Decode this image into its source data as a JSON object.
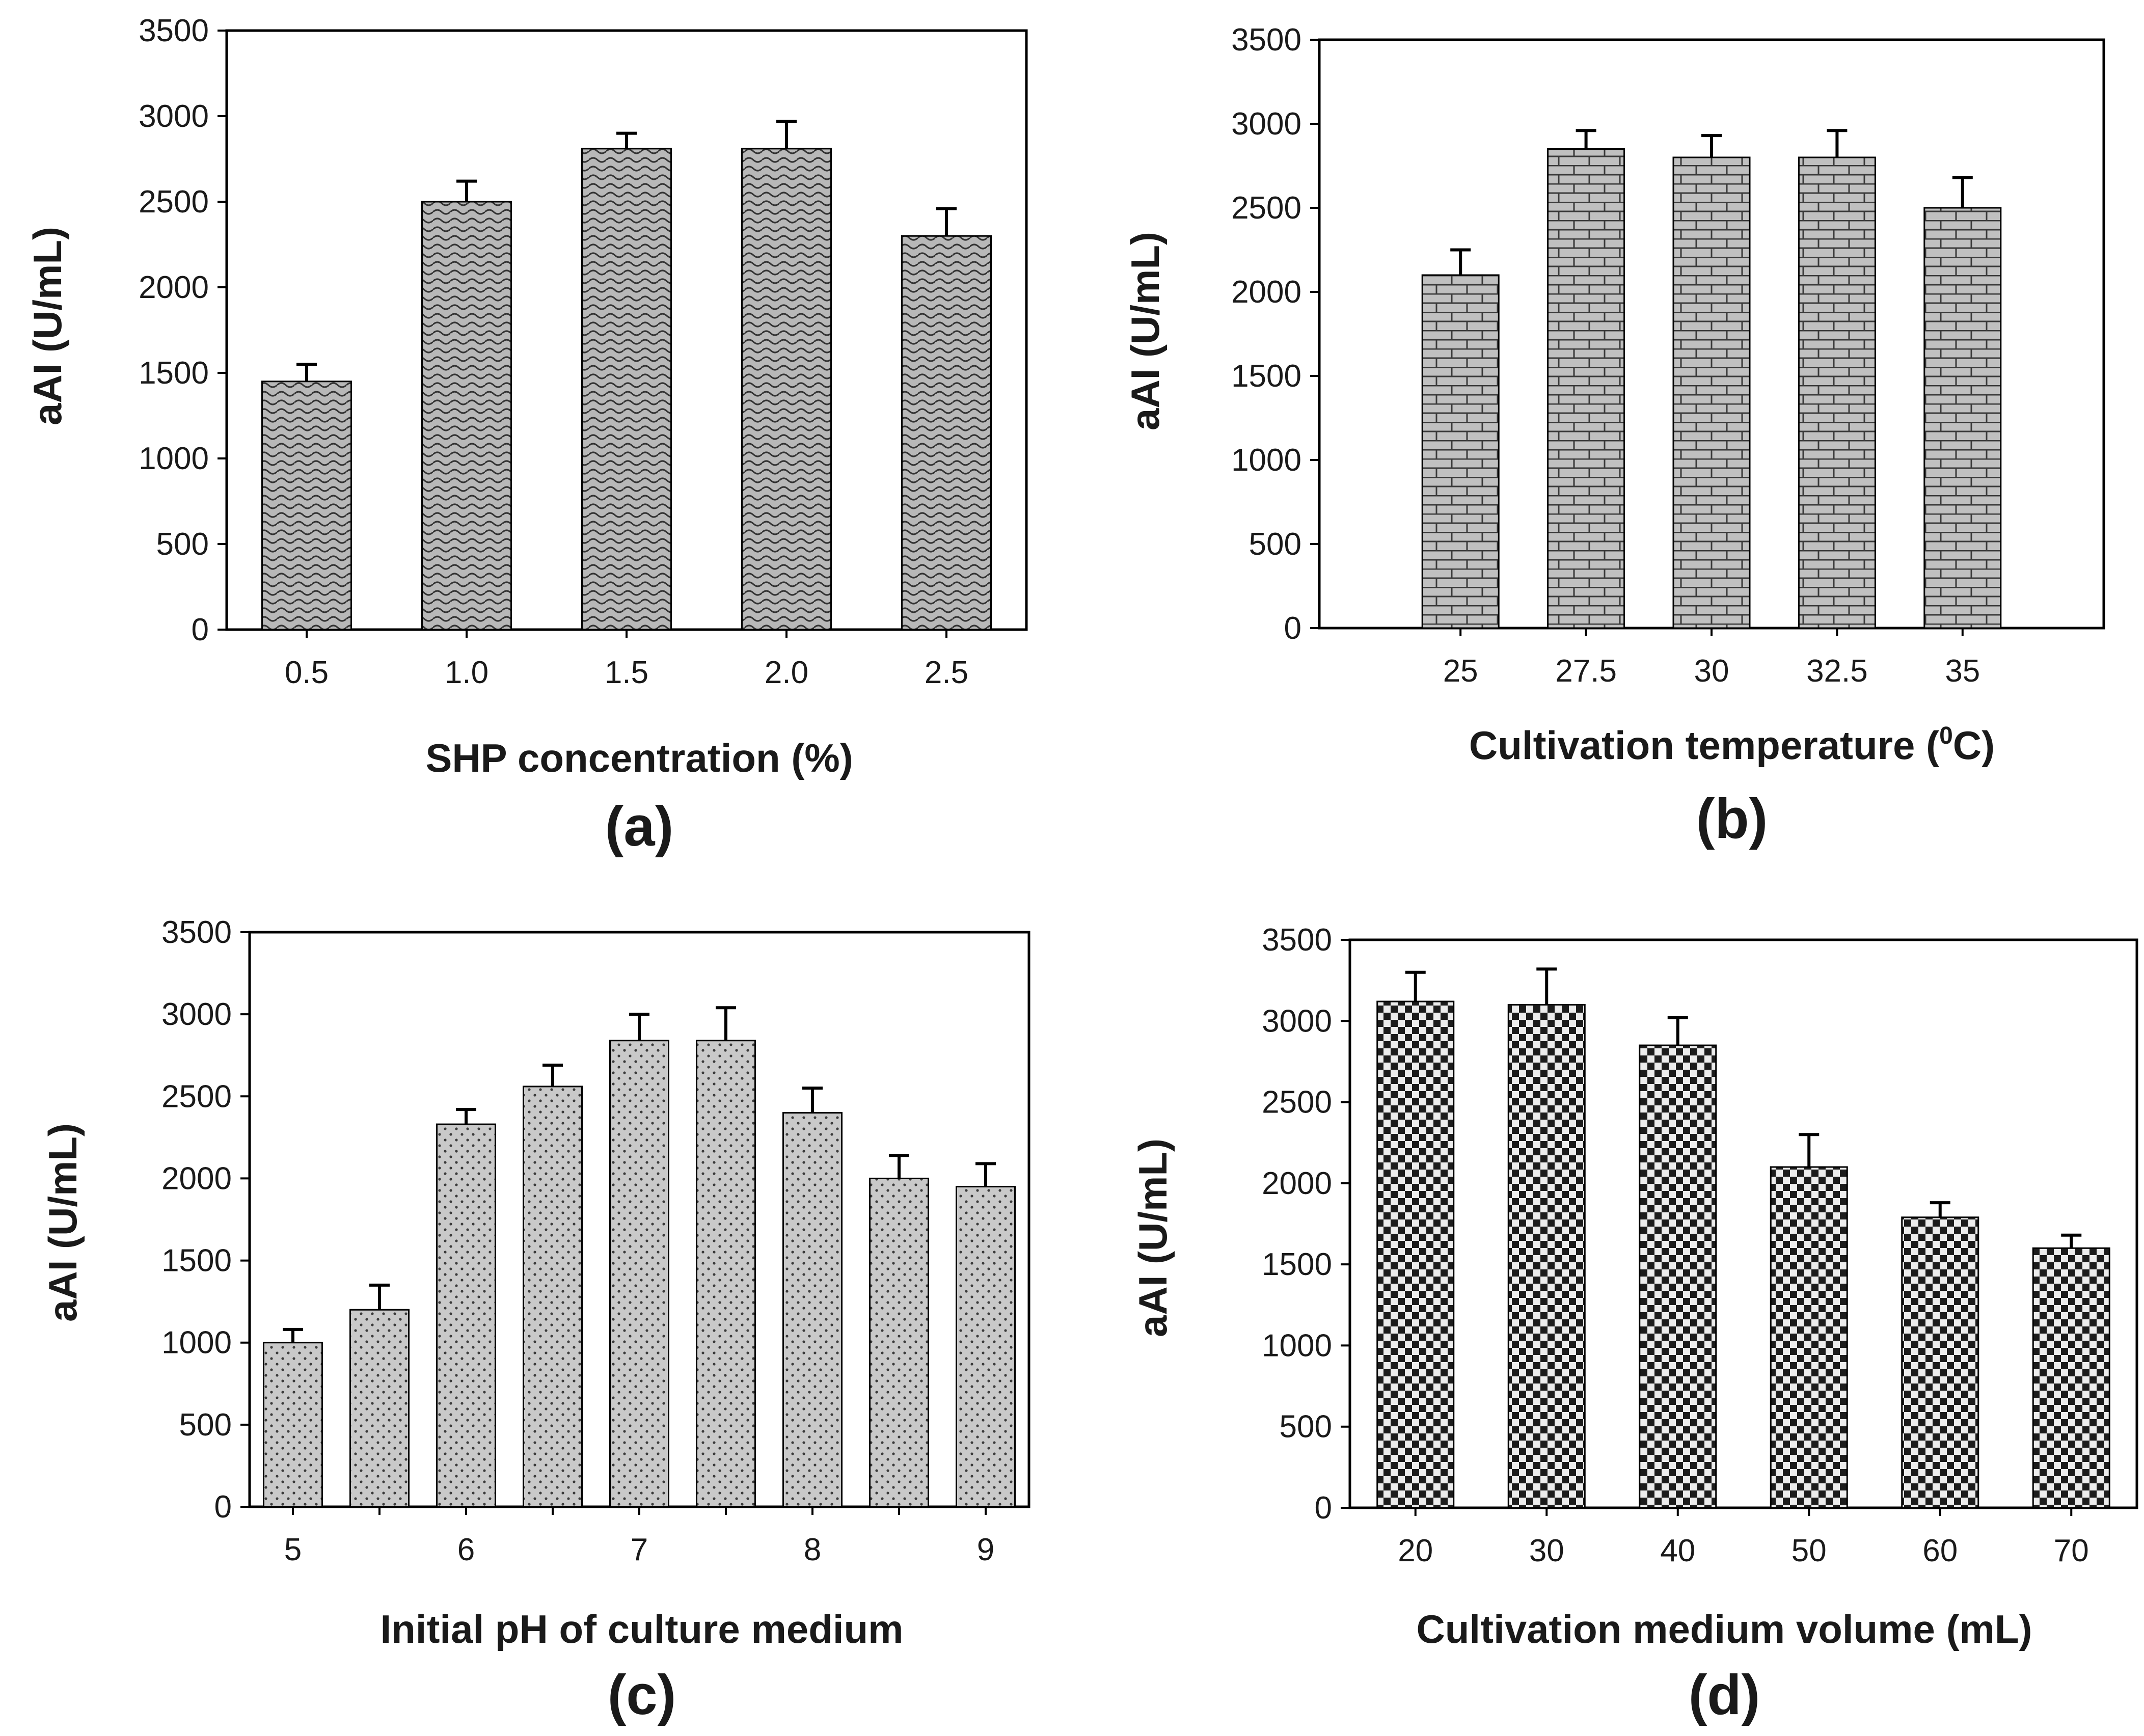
{
  "chart_data": [
    {
      "type": "bar",
      "panel_label": "(a)",
      "xlabel": "SHP concentration (%)",
      "ylabel": "aAI (U/mL)",
      "categories": [
        "0.5",
        "1.0",
        "1.5",
        "2.0",
        "2.5"
      ],
      "values": [
        1450,
        2500,
        2810,
        2810,
        2300
      ],
      "errors": [
        100,
        120,
        90,
        160,
        160
      ],
      "ylim": [
        0,
        3500
      ],
      "yticks": [
        0,
        500,
        1000,
        1500,
        2000,
        2500,
        3000,
        3500
      ],
      "pattern": "waves",
      "grid": false
    },
    {
      "type": "bar",
      "panel_label": "(b)",
      "xlabel": "Cultivation temperature (",
      "xlabel_sup": "0",
      "xlabel_tail": "C)",
      "ylabel": "aAI (U/mL)",
      "categories": [
        "25",
        "27.5",
        "30",
        "32.5",
        "35"
      ],
      "values": [
        2100,
        2850,
        2800,
        2800,
        2500
      ],
      "errors": [
        150,
        110,
        130,
        160,
        180
      ],
      "ylim": [
        0,
        3500
      ],
      "yticks": [
        0,
        500,
        1000,
        1500,
        2000,
        2500,
        3000,
        3500
      ],
      "pattern": "bricks",
      "grid": false
    },
    {
      "type": "bar",
      "panel_label": "(c)",
      "xlabel": "Initial pH of culture medium",
      "ylabel": "aAI (U/mL)",
      "categories": [
        "5",
        "5.5",
        "6",
        "6.5",
        "7",
        "7.5",
        "8",
        "8.5",
        "9"
      ],
      "tick_labels": [
        "5",
        "",
        "6",
        "",
        "7",
        "",
        "8",
        "",
        "9"
      ],
      "values": [
        1000,
        1200,
        2330,
        2560,
        2840,
        2840,
        2400,
        2000,
        1950
      ],
      "errors": [
        80,
        150,
        90,
        130,
        160,
        200,
        150,
        140,
        140
      ],
      "ylim": [
        0,
        3500
      ],
      "yticks": [
        0,
        500,
        1000,
        1500,
        2000,
        2500,
        3000,
        3500
      ],
      "pattern": "dots",
      "grid": false
    },
    {
      "type": "bar",
      "panel_label": "(d)",
      "xlabel": "Cultivation medium volume (mL)",
      "ylabel": "aAI (U/mL)",
      "categories": [
        "20",
        "30",
        "40",
        "50",
        "60",
        "70"
      ],
      "values": [
        3120,
        3100,
        2850,
        2100,
        1790,
        1600
      ],
      "errors": [
        180,
        220,
        170,
        200,
        90,
        80
      ],
      "ylim": [
        0,
        3500
      ],
      "yticks": [
        0,
        500,
        1000,
        1500,
        2000,
        2500,
        3000,
        3500
      ],
      "pattern": "checker",
      "grid": false
    }
  ]
}
